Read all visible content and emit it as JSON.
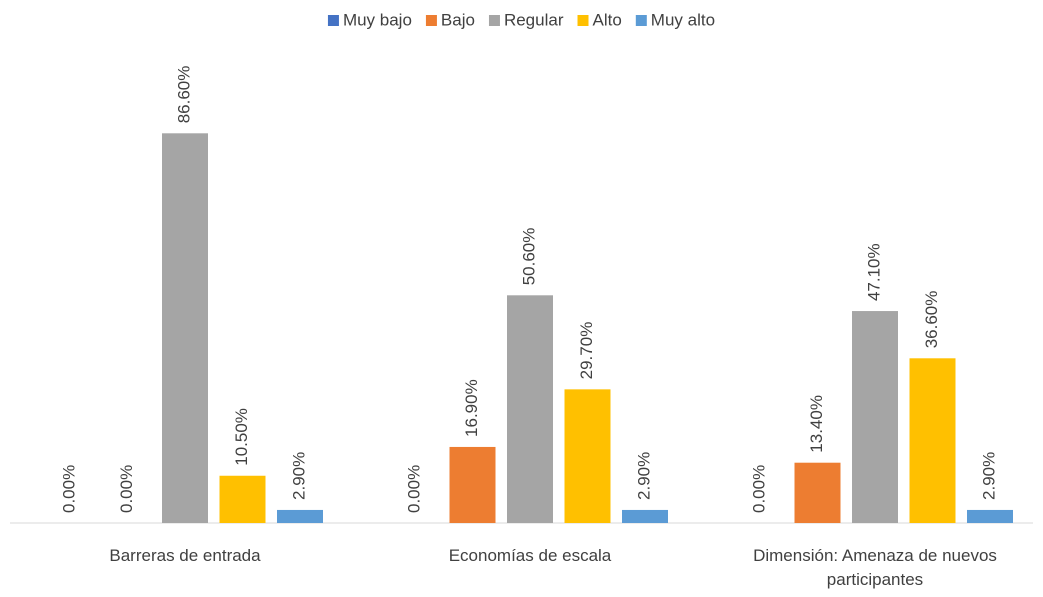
{
  "chart_data": {
    "type": "bar",
    "categories": [
      "Barreras de entrada",
      "Economías de escala",
      "Dimensión: Amenaza de nuevos participantes"
    ],
    "series": [
      {
        "name": "Muy bajo",
        "color": "#4472c4",
        "values": [
          0,
          0,
          0
        ],
        "value_labels": [
          "0.00%",
          "0.00%",
          "0.00%"
        ]
      },
      {
        "name": "Bajo",
        "color": "#ed7d31",
        "values": [
          0,
          16.9,
          13.4
        ],
        "value_labels": [
          "0.00%",
          "16.90%",
          "13.40%"
        ]
      },
      {
        "name": "Regular",
        "color": "#a5a5a5",
        "values": [
          86.6,
          50.6,
          47.1
        ],
        "value_labels": [
          "86.60%",
          "50.60%",
          "47.10%"
        ]
      },
      {
        "name": "Alto",
        "color": "#ffc000",
        "values": [
          10.5,
          29.7,
          36.6
        ],
        "value_labels": [
          "10.50%",
          "29.70%",
          "36.60%"
        ]
      },
      {
        "name": "Muy alto",
        "color": "#5b9bd5",
        "values": [
          2.9,
          2.9,
          2.9
        ],
        "value_labels": [
          "2.90%",
          "2.90%",
          "2.90%"
        ]
      }
    ],
    "ylim": [
      0,
      100
    ],
    "legend": "top"
  }
}
